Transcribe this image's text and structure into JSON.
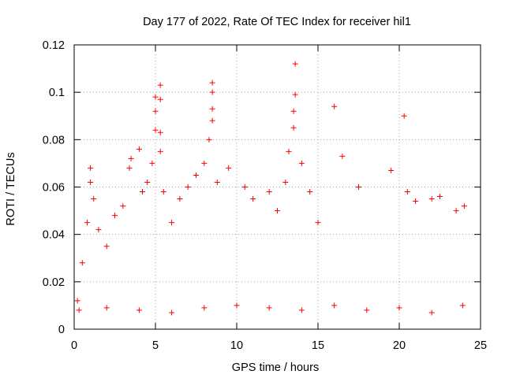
{
  "chart_data": {
    "type": "scatter",
    "title": "Day 177 of 2022, Rate Of TEC Index for receiver hil1",
    "xlabel": "GPS time / hours",
    "ylabel": "ROTI / TECUs",
    "xlim": [
      0,
      25
    ],
    "ylim": [
      0,
      0.12
    ],
    "xticks": [
      0,
      5,
      10,
      15,
      20,
      25
    ],
    "yticks": [
      0,
      0.02,
      0.04,
      0.06,
      0.08,
      0.1,
      0.12
    ],
    "xtick_labels": [
      "0",
      "5",
      "10",
      "15",
      "20",
      "25"
    ],
    "ytick_labels": [
      "0",
      "0.02",
      "0.04",
      "0.06",
      "0.08",
      "0.1",
      "0.12"
    ],
    "grid": true,
    "marker": "+",
    "color": "#ff0000",
    "series": [
      {
        "name": "ROTI",
        "points": [
          [
            0.2,
            0.012
          ],
          [
            0.5,
            0.028
          ],
          [
            0.8,
            0.045
          ],
          [
            1.0,
            0.062
          ],
          [
            1.0,
            0.068
          ],
          [
            1.2,
            0.055
          ],
          [
            1.5,
            0.042
          ],
          [
            2.0,
            0.035
          ],
          [
            2.5,
            0.048
          ],
          [
            3.0,
            0.052
          ],
          [
            3.4,
            0.068
          ],
          [
            3.5,
            0.072
          ],
          [
            4.0,
            0.076
          ],
          [
            4.2,
            0.058
          ],
          [
            4.5,
            0.062
          ],
          [
            4.8,
            0.07
          ],
          [
            5.0,
            0.084
          ],
          [
            5.0,
            0.092
          ],
          [
            5.0,
            0.098
          ],
          [
            5.3,
            0.103
          ],
          [
            5.3,
            0.097
          ],
          [
            5.3,
            0.083
          ],
          [
            5.3,
            0.075
          ],
          [
            5.5,
            0.058
          ],
          [
            6.0,
            0.045
          ],
          [
            6.5,
            0.055
          ],
          [
            7.0,
            0.06
          ],
          [
            7.5,
            0.065
          ],
          [
            8.0,
            0.07
          ],
          [
            8.3,
            0.08
          ],
          [
            8.5,
            0.088
          ],
          [
            8.5,
            0.093
          ],
          [
            8.5,
            0.1
          ],
          [
            8.5,
            0.104
          ],
          [
            8.8,
            0.062
          ],
          [
            9.5,
            0.068
          ],
          [
            10.5,
            0.06
          ],
          [
            11.0,
            0.055
          ],
          [
            12.0,
            0.058
          ],
          [
            12.5,
            0.05
          ],
          [
            13.0,
            0.062
          ],
          [
            13.2,
            0.075
          ],
          [
            13.5,
            0.085
          ],
          [
            13.5,
            0.092
          ],
          [
            13.6,
            0.099
          ],
          [
            13.6,
            0.112
          ],
          [
            14.0,
            0.07
          ],
          [
            14.5,
            0.058
          ],
          [
            15.0,
            0.045
          ],
          [
            16.0,
            0.094
          ],
          [
            16.5,
            0.073
          ],
          [
            17.5,
            0.06
          ],
          [
            19.5,
            0.067
          ],
          [
            20.3,
            0.09
          ],
          [
            20.5,
            0.058
          ],
          [
            21.0,
            0.054
          ],
          [
            22.0,
            0.055
          ],
          [
            22.5,
            0.056
          ],
          [
            23.5,
            0.05
          ],
          [
            24.0,
            0.052
          ],
          [
            0.3,
            0.008
          ],
          [
            2.0,
            0.009
          ],
          [
            4.0,
            0.008
          ],
          [
            6.0,
            0.007
          ],
          [
            8.0,
            0.009
          ],
          [
            10.0,
            0.01
          ],
          [
            12.0,
            0.009
          ],
          [
            14.0,
            0.008
          ],
          [
            16.0,
            0.01
          ],
          [
            18.0,
            0.008
          ],
          [
            20.0,
            0.009
          ],
          [
            22.0,
            0.007
          ],
          [
            23.9,
            0.01
          ]
        ]
      }
    ]
  }
}
